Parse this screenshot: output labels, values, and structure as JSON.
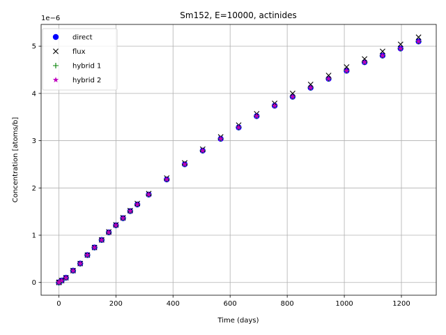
{
  "chart_data": {
    "type": "scatter",
    "title": "Sm152, E=10000, actinides",
    "xlabel": "Time (days)",
    "ylabel": "Concentration [atoms/b]",
    "y_scale_note": "1e−6",
    "xlim": [
      -62,
      1322
    ],
    "ylim": [
      -0.27,
      5.46
    ],
    "xticks": [
      0,
      200,
      400,
      600,
      800,
      1000,
      1200
    ],
    "yticks": [
      0,
      1,
      2,
      3,
      4,
      5
    ],
    "grid": true,
    "legend_position": "top-left",
    "x": [
      0,
      1,
      10,
      25,
      50,
      75,
      100,
      125,
      150,
      175,
      200,
      225,
      250,
      275,
      315,
      378,
      441,
      504,
      567,
      630,
      693,
      756,
      819,
      882,
      945,
      1008,
      1071,
      1134,
      1197,
      1260
    ],
    "series": [
      {
        "name": "direct",
        "marker": "circle",
        "color": "#0000ff",
        "values": [
          0.0,
          0.004,
          0.04,
          0.1,
          0.25,
          0.4,
          0.58,
          0.74,
          0.9,
          1.06,
          1.21,
          1.36,
          1.51,
          1.65,
          1.86,
          2.18,
          2.5,
          2.79,
          3.04,
          3.28,
          3.52,
          3.74,
          3.93,
          4.12,
          4.31,
          4.48,
          4.66,
          4.8,
          4.95,
          5.1
        ]
      },
      {
        "name": "flux",
        "marker": "x",
        "color": "#000000",
        "values": [
          0.0,
          0.004,
          0.04,
          0.1,
          0.25,
          0.4,
          0.58,
          0.74,
          0.9,
          1.07,
          1.22,
          1.37,
          1.52,
          1.67,
          1.88,
          2.21,
          2.53,
          2.82,
          3.08,
          3.33,
          3.57,
          3.79,
          4.0,
          4.19,
          4.38,
          4.56,
          4.73,
          4.89,
          5.04,
          5.19
        ]
      },
      {
        "name": "hybrid 1",
        "marker": "plus",
        "color": "#008000",
        "values": [
          0.0,
          0.004,
          0.04,
          0.1,
          0.25,
          0.4,
          0.58,
          0.74,
          0.9,
          1.06,
          1.21,
          1.36,
          1.51,
          1.65,
          1.86,
          2.18,
          2.5,
          2.79,
          3.04,
          3.28,
          3.52,
          3.74,
          3.93,
          4.12,
          4.31,
          4.48,
          4.66,
          4.8,
          4.95,
          5.1
        ]
      },
      {
        "name": "hybrid 2",
        "marker": "star",
        "color": "#bf00bf",
        "values": [
          0.0,
          0.004,
          0.04,
          0.1,
          0.25,
          0.4,
          0.58,
          0.74,
          0.9,
          1.06,
          1.21,
          1.36,
          1.51,
          1.65,
          1.86,
          2.18,
          2.5,
          2.79,
          3.04,
          3.28,
          3.52,
          3.74,
          3.93,
          4.12,
          4.31,
          4.48,
          4.66,
          4.8,
          4.95,
          5.1
        ]
      }
    ]
  }
}
